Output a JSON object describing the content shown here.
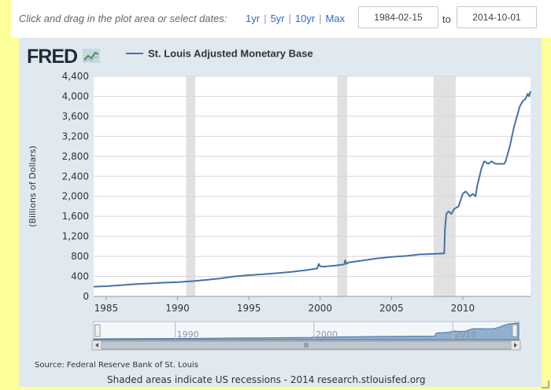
{
  "toolbar": {
    "instruction": "Click and drag in the plot area or select dates:",
    "range_links": [
      "1yr",
      "5yr",
      "10yr",
      "Max"
    ],
    "start_date": "1984-02-15",
    "to_label": "to",
    "end_date": "2014-10-01"
  },
  "logo": "FRED",
  "legend": {
    "label": "St. Louis Adjusted Monetary Base"
  },
  "footer": {
    "source": "Source: Federal Reserve Bank of St. Louis",
    "note": "Shaded areas indicate US recessions - 2014 research.stlouisfed.org"
  },
  "chart_data": {
    "type": "line",
    "ylabel": "(Billions of Dollars)",
    "ylim": [
      0,
      4400
    ],
    "xlim": [
      1984.12,
      2014.75
    ],
    "y_ticks": [
      "0",
      "400",
      "800",
      "1,200",
      "1,600",
      "2,000",
      "2,400",
      "2,800",
      "3,200",
      "3,600",
      "4,000",
      "4,400"
    ],
    "x_ticks": [
      "1985",
      "1990",
      "1995",
      "2000",
      "2005",
      "2010"
    ],
    "navigator_ticks": [
      "1990",
      "2000",
      "2010"
    ],
    "grid": true,
    "recessions": [
      [
        1990.6,
        1991.25
      ],
      [
        2001.2,
        2001.9
      ],
      [
        2007.95,
        2009.5
      ]
    ],
    "series": [
      {
        "name": "St. Louis Adjusted Monetary Base",
        "color": "#4572a7",
        "x": [
          1984.12,
          1985,
          1986,
          1987,
          1988,
          1989,
          1990,
          1991,
          1992,
          1993,
          1994,
          1995,
          1996,
          1997,
          1998,
          1999,
          1999.8,
          1999.9,
          2000.0,
          2000.2,
          2001,
          2001.7,
          2001.75,
          2001.85,
          2002,
          2003,
          2004,
          2005,
          2006,
          2007,
          2008,
          2008.7,
          2008.75,
          2008.85,
          2009.0,
          2009.2,
          2009.4,
          2009.7,
          2010.0,
          2010.2,
          2010.5,
          2010.7,
          2010.9,
          2011.0,
          2011.3,
          2011.5,
          2011.8,
          2012.0,
          2012.3,
          2012.6,
          2012.9,
          2013.0,
          2013.3,
          2013.6,
          2013.9,
          2014.0,
          2014.2,
          2014.4,
          2014.55,
          2014.65,
          2014.75
        ],
        "values": [
          195,
          205,
          225,
          245,
          260,
          275,
          285,
          305,
          330,
          360,
          400,
          425,
          445,
          465,
          490,
          525,
          560,
          650,
          600,
          595,
          615,
          640,
          720,
          650,
          680,
          720,
          760,
          790,
          810,
          840,
          850,
          860,
          1350,
          1650,
          1700,
          1650,
          1750,
          1800,
          2050,
          2100,
          2000,
          2050,
          2000,
          2200,
          2550,
          2700,
          2650,
          2700,
          2650,
          2650,
          2650,
          2700,
          3000,
          3400,
          3700,
          3800,
          3900,
          3950,
          4050,
          4000,
          4100
        ]
      }
    ]
  }
}
